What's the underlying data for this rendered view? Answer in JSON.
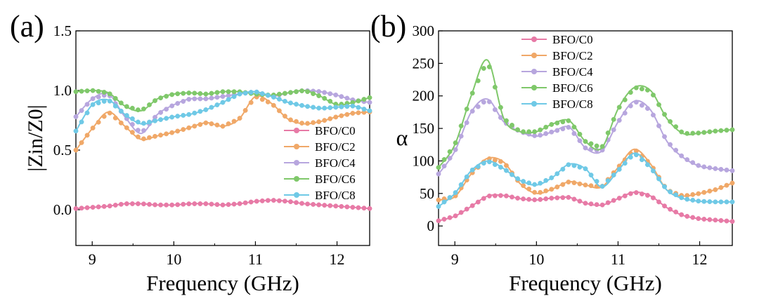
{
  "colors": {
    "BFO/C0": "#e77aa6",
    "BFO/C2": "#f0a868",
    "BFO/C4": "#b7a6de",
    "BFO/C6": "#7fc86a",
    "BFO/C8": "#6fc9e6"
  },
  "chart_data": [
    {
      "panel_label": "(a)",
      "type": "line",
      "xlabel": "Frequency (GHz)",
      "ylabel": "|Zin/Z0|",
      "xlim": [
        8.8,
        12.4
      ],
      "ylim": [
        -0.3,
        1.5
      ],
      "xticks": [
        9,
        10,
        11,
        12
      ],
      "yticks": [
        0.0,
        0.5,
        1.0,
        1.5
      ],
      "ytick_labels": [
        "0.0",
        "0.5",
        "1.0",
        "1.5"
      ],
      "grid": false,
      "legend_position": "center-right",
      "series": [
        {
          "name": "BFO/C0",
          "x": [
            8.8,
            9.0,
            9.2,
            9.4,
            9.6,
            9.8,
            10.0,
            10.2,
            10.4,
            10.6,
            10.8,
            11.0,
            11.2,
            11.4,
            11.6,
            11.8,
            12.0,
            12.2,
            12.4
          ],
          "y": [
            0.01,
            0.02,
            0.03,
            0.05,
            0.05,
            0.04,
            0.04,
            0.05,
            0.05,
            0.04,
            0.05,
            0.07,
            0.08,
            0.07,
            0.05,
            0.04,
            0.03,
            0.02,
            0.01
          ]
        },
        {
          "name": "BFO/C2",
          "x": [
            8.8,
            9.0,
            9.2,
            9.4,
            9.6,
            9.8,
            10.0,
            10.2,
            10.4,
            10.6,
            10.8,
            11.0,
            11.2,
            11.4,
            11.6,
            11.8,
            12.0,
            12.2,
            12.4
          ],
          "y": [
            0.5,
            0.68,
            0.82,
            0.7,
            0.59,
            0.62,
            0.65,
            0.69,
            0.73,
            0.7,
            0.76,
            0.95,
            0.89,
            0.76,
            0.72,
            0.74,
            0.78,
            0.81,
            0.82
          ]
        },
        {
          "name": "BFO/C4",
          "x": [
            8.8,
            9.0,
            9.2,
            9.4,
            9.6,
            9.8,
            10.0,
            10.2,
            10.4,
            10.6,
            10.8,
            11.0,
            11.2,
            11.4,
            11.6,
            11.8,
            12.0,
            12.2,
            12.4
          ],
          "y": [
            0.78,
            0.93,
            0.97,
            0.78,
            0.64,
            0.8,
            0.88,
            0.93,
            0.93,
            0.95,
            0.97,
            0.99,
            0.95,
            0.98,
            1.0,
            0.99,
            0.96,
            0.92,
            0.9
          ]
        },
        {
          "name": "BFO/C6",
          "x": [
            8.8,
            9.0,
            9.2,
            9.4,
            9.6,
            9.8,
            10.0,
            10.2,
            10.4,
            10.6,
            10.8,
            11.0,
            11.2,
            11.4,
            11.6,
            11.8,
            12.0,
            12.2,
            12.4
          ],
          "y": [
            0.99,
            1.0,
            0.98,
            0.87,
            0.83,
            0.93,
            0.97,
            0.98,
            0.97,
            0.99,
            0.99,
            0.97,
            0.96,
            0.98,
            1.0,
            0.95,
            0.88,
            0.9,
            0.94
          ]
        },
        {
          "name": "BFO/C8",
          "x": [
            8.8,
            9.0,
            9.2,
            9.4,
            9.6,
            9.8,
            10.0,
            10.2,
            10.4,
            10.6,
            10.8,
            11.0,
            11.2,
            11.4,
            11.6,
            11.8,
            12.0,
            12.2,
            12.4
          ],
          "y": [
            0.66,
            0.88,
            0.92,
            0.8,
            0.72,
            0.75,
            0.78,
            0.8,
            0.84,
            0.9,
            0.97,
            0.99,
            0.95,
            0.9,
            0.87,
            0.85,
            0.86,
            0.87,
            0.83
          ]
        }
      ]
    },
    {
      "panel_label": "(b)",
      "type": "line",
      "xlabel": "Frequency (GHz)",
      "ylabel": "α",
      "xlim": [
        8.8,
        12.4
      ],
      "ylim": [
        -30,
        300
      ],
      "xticks": [
        9,
        10,
        11,
        12
      ],
      "yticks": [
        0,
        50,
        100,
        150,
        200,
        250,
        300
      ],
      "ytick_labels": [
        "0",
        "50",
        "100",
        "150",
        "200",
        "250",
        "300"
      ],
      "grid": false,
      "legend_position": "top-center",
      "series": [
        {
          "name": "BFO/C0",
          "x": [
            8.8,
            9.0,
            9.2,
            9.4,
            9.6,
            9.8,
            10.0,
            10.2,
            10.4,
            10.6,
            10.8,
            11.0,
            11.2,
            11.4,
            11.6,
            11.8,
            12.0,
            12.2,
            12.4
          ],
          "y": [
            8,
            15,
            30,
            46,
            47,
            42,
            40,
            43,
            44,
            35,
            32,
            42,
            52,
            46,
            28,
            16,
            11,
            9,
            7
          ]
        },
        {
          "name": "BFO/C2",
          "x": [
            8.8,
            9.0,
            9.2,
            9.4,
            9.6,
            9.8,
            10.0,
            10.2,
            10.4,
            10.6,
            10.8,
            11.0,
            11.2,
            11.4,
            11.6,
            11.8,
            12.0,
            12.2,
            12.4
          ],
          "y": [
            40,
            45,
            80,
            104,
            98,
            65,
            50,
            57,
            68,
            63,
            60,
            90,
            118,
            95,
            55,
            46,
            50,
            56,
            66
          ]
        },
        {
          "name": "BFO/C4",
          "x": [
            8.8,
            9.0,
            9.2,
            9.4,
            9.6,
            9.8,
            10.0,
            10.2,
            10.4,
            10.6,
            10.8,
            11.0,
            11.2,
            11.4,
            11.6,
            11.8,
            12.0,
            12.2,
            12.4
          ],
          "y": [
            80,
            115,
            175,
            195,
            160,
            145,
            138,
            145,
            152,
            120,
            115,
            160,
            192,
            178,
            130,
            105,
            92,
            88,
            85
          ]
        },
        {
          "name": "BFO/C6",
          "x": [
            8.8,
            9.0,
            9.2,
            9.4,
            9.6,
            9.8,
            10.0,
            10.2,
            10.4,
            10.6,
            10.8,
            11.0,
            11.2,
            11.4,
            11.6,
            11.8,
            12.0,
            12.2,
            12.4
          ],
          "y": [
            90,
            125,
            200,
            255,
            165,
            145,
            145,
            157,
            162,
            130,
            120,
            180,
            213,
            208,
            165,
            142,
            143,
            146,
            148
          ]
        },
        {
          "name": "BFO/C8",
          "x": [
            8.8,
            9.0,
            9.2,
            9.4,
            9.6,
            9.8,
            10.0,
            10.2,
            10.4,
            10.6,
            10.8,
            11.0,
            11.2,
            11.4,
            11.6,
            11.8,
            12.0,
            12.2,
            12.4
          ],
          "y": [
            30,
            50,
            85,
            100,
            88,
            70,
            63,
            75,
            95,
            88,
            60,
            85,
            112,
            90,
            55,
            42,
            38,
            37,
            37
          ]
        }
      ]
    }
  ]
}
